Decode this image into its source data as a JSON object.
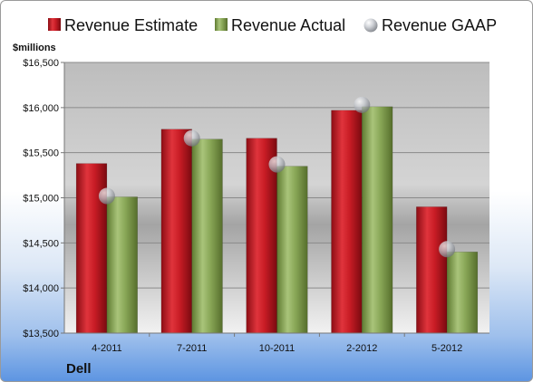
{
  "chart_data": {
    "type": "bar",
    "categories": [
      "4-2011",
      "7-2011",
      "10-2011",
      "2-2012",
      "5-2012"
    ],
    "series": [
      {
        "name": "Revenue Estimate",
        "values": [
          15380,
          15760,
          15660,
          15970,
          14900
        ],
        "color": "#d0202a"
      },
      {
        "name": "Revenue Actual",
        "values": [
          15010,
          15650,
          15350,
          16010,
          14400
        ],
        "color": "#8aa85a"
      },
      {
        "name": "Revenue GAAP",
        "values": [
          15020,
          15660,
          15370,
          16030,
          14430
        ],
        "color": "#b8bcc4"
      }
    ],
    "ylabel": "$millions",
    "ylim": [
      13500,
      16500
    ],
    "yticks": [
      13500,
      14000,
      14500,
      15000,
      15500,
      16000,
      16500
    ],
    "ytick_labels": [
      "$13,500",
      "$14,000",
      "$14,500",
      "$15,000",
      "$15,500",
      "$16,000",
      "$16,500"
    ],
    "legend_position": "top",
    "grid": true,
    "company": "Dell"
  }
}
